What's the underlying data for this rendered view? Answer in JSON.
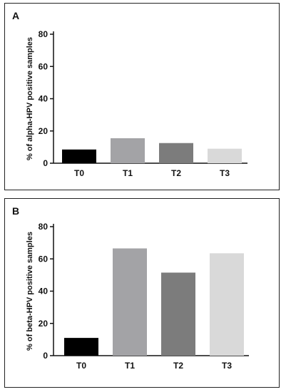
{
  "chart_data": [
    {
      "type": "bar",
      "panel_label": "A",
      "categories": [
        "T0",
        "T1",
        "T2",
        "T3"
      ],
      "values": [
        8.5,
        15.5,
        12.5,
        9.0
      ],
      "colors": [
        "#000000",
        "#a3a3a6",
        "#7c7c7c",
        "#d9d9d9"
      ],
      "ylabel": "% of alpha-HPV positive samples",
      "xlabel": "",
      "ylim": [
        0,
        80
      ],
      "yticks": [
        0,
        20,
        40,
        60,
        80
      ],
      "grid": false,
      "legend": "none"
    },
    {
      "type": "bar",
      "panel_label": "B",
      "categories": [
        "T0",
        "T1",
        "T2",
        "T3"
      ],
      "values": [
        11,
        66.5,
        51.5,
        63.5
      ],
      "colors": [
        "#000000",
        "#a3a3a6",
        "#7c7c7c",
        "#d9d9d9"
      ],
      "ylabel": "% of beta-HPV positive samples",
      "xlabel": "",
      "ylim": [
        0,
        80
      ],
      "yticks": [
        0,
        20,
        40,
        60,
        80
      ],
      "grid": false,
      "legend": "none"
    }
  ]
}
